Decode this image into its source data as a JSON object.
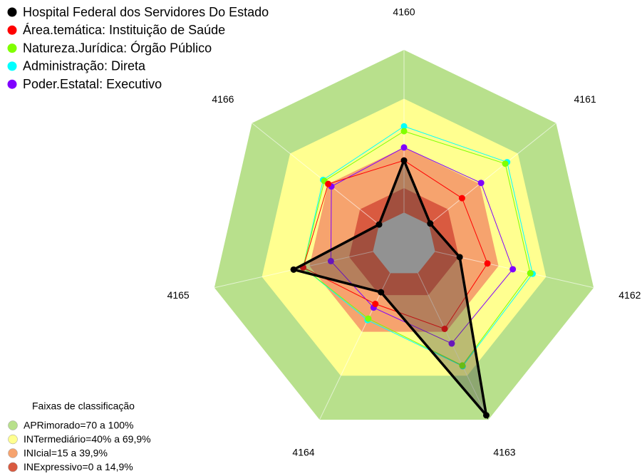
{
  "chart_data": {
    "type": "radar",
    "categories": [
      "4160",
      "4161",
      "4162",
      "4163",
      "4164",
      "4165",
      "4166"
    ],
    "rlim": [
      0,
      100
    ],
    "series": [
      {
        "name": "Hospital Federal dos Servidores Do Estado",
        "color": "#000000",
        "values": [
          32,
          1,
          15.5,
          97,
          13,
          50,
          0
        ]
      },
      {
        "name": "Área.temática: Instituição de Saúde",
        "color": "#ff0000",
        "values": [
          32,
          26,
          33,
          38,
          21,
          44,
          40
        ]
      },
      {
        "name": "Natureza.Jurídica: Órgão Público",
        "color": "#80ff00",
        "values": [
          50,
          60,
          60,
          63,
          31,
          44,
          43
        ]
      },
      {
        "name": "Administração: Direta",
        "color": "#00ffff",
        "values": [
          53,
          61.5,
          61.5,
          63.5,
          32,
          44,
          44
        ]
      },
      {
        "name": "Poder.Estatal: Executivo",
        "color": "#8000ff",
        "values": [
          40,
          41,
          49,
          48,
          23.5,
          26.5,
          37.5
        ]
      }
    ],
    "bands_title": "Faixas de classificação",
    "bands": [
      {
        "label": "APRimorado=70 a 100%",
        "from": 70,
        "to": 100,
        "color": "#b8e08c"
      },
      {
        "label": "INTermediário=40% a 69,9%",
        "from": 40,
        "to": 70,
        "color": "#ffff90"
      },
      {
        "label": "INIcial=15 a 39,9%",
        "from": 15,
        "to": 40,
        "color": "#f6a36e"
      },
      {
        "label": "INExpressivo=0 a 14,9%",
        "from": 0,
        "to": 15,
        "color": "#d95a40"
      }
    ]
  }
}
